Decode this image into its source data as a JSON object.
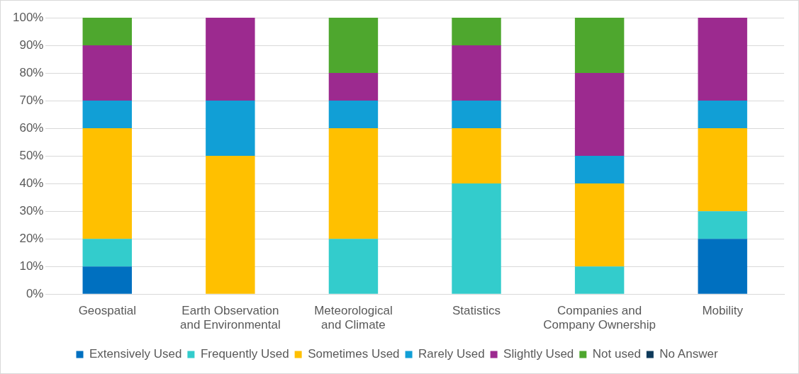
{
  "chart_data": {
    "type": "bar",
    "stacked": true,
    "categories": [
      "Geospatial",
      "Earth Observation and Environmental",
      "Meteorological and Climate",
      "Statistics",
      "Companies and Company Ownership",
      "Mobility"
    ],
    "series": [
      {
        "name": "Extensively Used",
        "color": "#0070c0",
        "values": [
          10,
          0,
          0,
          0,
          0,
          20
        ]
      },
      {
        "name": "Frequently Used",
        "color": "#33cccc",
        "values": [
          10,
          0,
          20,
          40,
          10,
          10
        ]
      },
      {
        "name": "Sometimes Used",
        "color": "#ffc000",
        "values": [
          40,
          50,
          40,
          20,
          30,
          30
        ]
      },
      {
        "name": "Rarely Used",
        "color": "#119fd6",
        "values": [
          10,
          20,
          10,
          10,
          10,
          10
        ]
      },
      {
        "name": "Slightly Used",
        "color": "#9c2a8f",
        "values": [
          20,
          30,
          10,
          20,
          30,
          30
        ]
      },
      {
        "name": "Not used",
        "color": "#4ea72e",
        "values": [
          10,
          0,
          20,
          10,
          20,
          0
        ]
      },
      {
        "name": "No Answer",
        "color": "#0e3a5a",
        "values": [
          0,
          0,
          0,
          0,
          0,
          0
        ]
      }
    ],
    "ylim": [
      0,
      100
    ],
    "yticks": [
      {
        "value": 0,
        "label": "0%"
      },
      {
        "value": 10,
        "label": "10%"
      },
      {
        "value": 20,
        "label": "20%"
      },
      {
        "value": 30,
        "label": "30%"
      },
      {
        "value": 40,
        "label": "40%"
      },
      {
        "value": 50,
        "label": "50%"
      },
      {
        "value": 60,
        "label": "60%"
      },
      {
        "value": 70,
        "label": "70%"
      },
      {
        "value": 80,
        "label": "80%"
      },
      {
        "value": 90,
        "label": "90%"
      },
      {
        "value": 100,
        "label": "100%"
      }
    ],
    "grid": "y",
    "legend": "bottom"
  }
}
